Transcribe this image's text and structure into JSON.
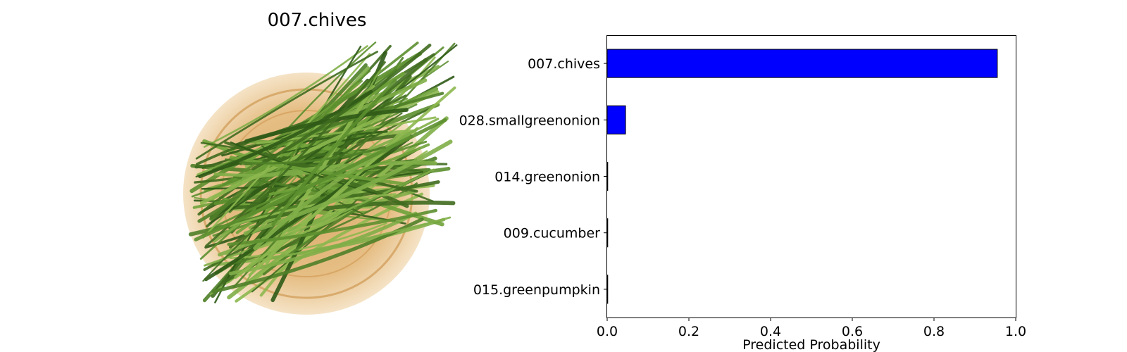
{
  "image_panel": {
    "title": "007.chives",
    "image_icon": "chives-in-basket-photo"
  },
  "chart_data": {
    "type": "bar",
    "orientation": "horizontal",
    "categories": [
      "007.chives",
      "028.smallgreenonion",
      "014.greenonion",
      "009.cucumber",
      "015.greenpumpkin"
    ],
    "values": [
      0.955,
      0.045,
      0.0,
      0.0,
      0.0
    ],
    "xlabel": "Predicted Probability",
    "xlim": [
      0.0,
      1.0
    ],
    "xticks": [
      "0.0",
      "0.2",
      "0.4",
      "0.6",
      "0.8",
      "1.0"
    ],
    "bar_color": "#0000ff",
    "edge_color": "#000000",
    "grid": false
  }
}
